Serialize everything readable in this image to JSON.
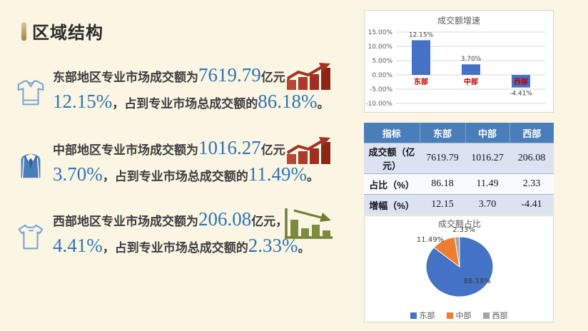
{
  "slide": {
    "title": "区域结构",
    "background_color": "#fbf5e4",
    "accent_gold": "#c2a05f"
  },
  "bullets": [
    {
      "icon": "polo-shirt-icon",
      "trend_icon": "rising-bars-arrow-icon-red",
      "prefix": "东部地区专业市场成交额为",
      "amount": "7619.79",
      "unit": "亿元，",
      "growth": "12.15%",
      "comma": "，",
      "mid": "占到专业市场总成交额的",
      "share": "86.18%",
      "period": "。"
    },
    {
      "icon": "suit-icon",
      "trend_icon": "rising-bars-arrow-icon-red",
      "prefix": "中部地区专业市场成交额为",
      "amount": "1016.27",
      "unit": "亿元，",
      "growth": "3.70%",
      "comma": "，",
      "mid": "占到专业市场总成交额的",
      "share": "11.49%",
      "period": "。"
    },
    {
      "icon": "tee-shirt-icon",
      "trend_icon": "falling-bars-arrow-icon-green",
      "prefix": "西部地区专业市场成交额为",
      "amount": "206.08",
      "unit": "亿元，",
      "growth": "4.41%",
      "comma": "，",
      "mid": "占到专业市场总成交额的",
      "share": "2.33%",
      "period": "。"
    }
  ],
  "colors": {
    "number_blue": "#2e74b5",
    "body_text": "#3d3d3d",
    "bar_blue": "#4472c4",
    "category_red": "#c00000",
    "table_header_bg": "#4a7ebb",
    "table_band_bg": "#dbe3f1",
    "pie_blue": "#4472c4",
    "pie_orange": "#ed7d31",
    "pie_gray": "#a5a5a5"
  },
  "chart_data": [
    {
      "type": "bar",
      "title": "成交额增速",
      "categories": [
        "东部",
        "中部",
        "西部"
      ],
      "values": [
        12.15,
        3.7,
        -4.41
      ],
      "value_labels": [
        "12.15%",
        "3.70%",
        "-4.41%"
      ],
      "ylim": [
        -10,
        15
      ],
      "ytick_step": 5,
      "ytick_labels": [
        "15.00%",
        "10.00%",
        "5.00%",
        "0.00%",
        "-5.00%",
        "-10.00%"
      ],
      "bar_color": "#4472c4",
      "category_label_color": "#c00000",
      "grid": true,
      "legend": "none"
    },
    {
      "type": "pie",
      "title": "成交额占比",
      "categories": [
        "东部",
        "中部",
        "西部"
      ],
      "values": [
        86.18,
        11.49,
        2.33
      ],
      "slice_labels": [
        "86.18%",
        "11.49%",
        "2.33%"
      ],
      "colors": [
        "#4472c4",
        "#ed7d31",
        "#a5a5a5"
      ],
      "legend_position": "bottom"
    }
  ],
  "table": {
    "headers": [
      "指标",
      "东部",
      "中部",
      "西部"
    ],
    "rows": [
      {
        "label": "成交额（亿元）",
        "cells": [
          "7619.79",
          "1016.27",
          "206.08"
        ]
      },
      {
        "label": "占比（%）",
        "cells": [
          "86.18",
          "11.49",
          "2.33"
        ]
      },
      {
        "label": "增幅（%）",
        "cells": [
          "12.15",
          "3.70",
          "-4.41"
        ]
      }
    ]
  }
}
